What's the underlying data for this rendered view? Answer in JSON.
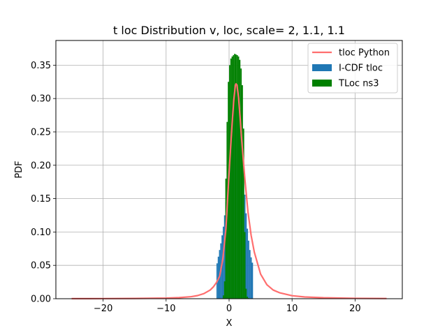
{
  "chart_data": {
    "type": "bar",
    "title": "t loc Distribution v, loc, scale= 2, 1.1, 1.1",
    "xlabel": "X",
    "ylabel": "PDF",
    "xlim": [
      -27.5,
      27.5
    ],
    "ylim": [
      0,
      0.387
    ],
    "xticks": [
      -20,
      -10,
      0,
      10,
      20
    ],
    "xtick_labels": [
      "−20",
      "−10",
      "0",
      "10",
      "20"
    ],
    "yticks": [
      0.0,
      0.05,
      0.1,
      0.15,
      0.2,
      0.25,
      0.3,
      0.35
    ],
    "ytick_labels": [
      "0.00",
      "0.05",
      "0.10",
      "0.15",
      "0.20",
      "0.25",
      "0.30",
      "0.35"
    ],
    "grid": true,
    "legend_position": "top-right",
    "colors": {
      "line": "#ff6e6e",
      "icdf": "#1f77b4",
      "ns3": "#008000",
      "grid": "#b0b0b0",
      "axes": "#000000"
    },
    "series": [
      {
        "name": "tloc Python",
        "type": "line",
        "color": "#ff6e6e",
        "x": [
          -25,
          -20,
          -15,
          -10,
          -8,
          -6,
          -5,
          -4,
          -3,
          -2.5,
          -2,
          -1.5,
          -1,
          -0.5,
          0,
          0.25,
          0.5,
          0.75,
          1.0,
          1.1,
          1.25,
          1.5,
          1.75,
          2.0,
          2.5,
          3,
          3.5,
          4,
          5,
          6,
          7,
          8,
          10,
          12,
          15,
          20,
          25
        ],
        "y": [
          0.0001,
          0.0002,
          0.0004,
          0.0009,
          0.0016,
          0.0031,
          0.0047,
          0.0076,
          0.013,
          0.0177,
          0.0243,
          0.0336,
          0.0591,
          0.105,
          0.189,
          0.228,
          0.265,
          0.298,
          0.32,
          0.322,
          0.32,
          0.302,
          0.272,
          0.238,
          0.18,
          0.13,
          0.095,
          0.07,
          0.037,
          0.021,
          0.013,
          0.009,
          0.0045,
          0.0026,
          0.0014,
          0.0006,
          0.0003
        ]
      },
      {
        "name": "I-CDF tloc",
        "type": "histogram",
        "color": "#1f77b4",
        "x": [
          -1.9,
          -1.7,
          -1.5,
          -1.3,
          -1.1,
          -0.9,
          -0.7,
          -0.5,
          -0.3,
          -0.1,
          0.1,
          0.3,
          0.5,
          0.7,
          0.9,
          1.1,
          1.3,
          1.5,
          1.7,
          1.9,
          2.1,
          2.3,
          2.5,
          2.7,
          2.9,
          3.1,
          3.3,
          3.5,
          3.7
        ],
        "y": [
          0.053,
          0.063,
          0.073,
          0.083,
          0.095,
          0.108,
          0.125,
          0.145,
          0.17,
          0.198,
          0.228,
          0.26,
          0.288,
          0.31,
          0.318,
          0.322,
          0.318,
          0.306,
          0.284,
          0.256,
          0.222,
          0.188,
          0.156,
          0.128,
          0.105,
          0.087,
          0.073,
          0.062,
          0.054
        ]
      },
      {
        "name": "TLoc ns3",
        "type": "histogram",
        "color": "#008000",
        "x": [
          -0.9,
          -0.7,
          -0.5,
          -0.3,
          -0.1,
          0.1,
          0.3,
          0.5,
          0.7,
          0.9,
          1.1,
          1.3,
          1.5,
          1.7,
          1.9,
          2.1,
          2.3,
          2.5,
          2.7,
          2.9,
          3.1
        ],
        "y": [
          0.005,
          0.026,
          0.18,
          0.265,
          0.325,
          0.35,
          0.36,
          0.363,
          0.365,
          0.367,
          0.366,
          0.365,
          0.363,
          0.358,
          0.345,
          0.32,
          0.255,
          0.1,
          0.015,
          0.003,
          0.001
        ]
      }
    ]
  }
}
